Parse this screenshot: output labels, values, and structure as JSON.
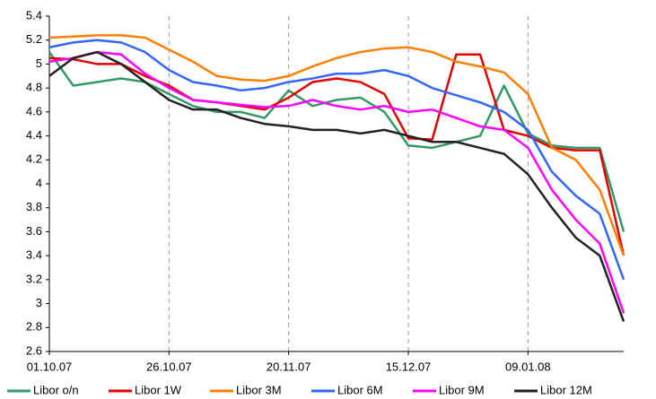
{
  "chart_data": {
    "type": "line",
    "categories": [
      "01.10.07",
      null,
      null,
      null,
      null,
      "26.10.07",
      null,
      null,
      null,
      null,
      "20.11.07",
      null,
      null,
      null,
      null,
      "15.12.07",
      null,
      null,
      null,
      null,
      "09.01.08",
      null,
      null,
      null,
      null
    ],
    "series": [
      {
        "name": "Libor o/n",
        "color": "#339966",
        "values": [
          5.1,
          4.82,
          4.85,
          4.88,
          4.85,
          4.75,
          4.65,
          4.6,
          4.6,
          4.55,
          4.78,
          4.65,
          4.7,
          4.72,
          4.6,
          4.32,
          4.3,
          4.35,
          4.4,
          4.82,
          4.42,
          4.32,
          4.3,
          4.3,
          3.6
        ]
      },
      {
        "name": "Libor 1W",
        "color": "#e00000",
        "values": [
          5.05,
          5.04,
          5.0,
          5.0,
          4.9,
          4.82,
          4.7,
          4.68,
          4.65,
          4.62,
          4.72,
          4.85,
          4.88,
          4.85,
          4.75,
          4.38,
          4.37,
          5.08,
          5.08,
          4.45,
          4.4,
          4.3,
          4.28,
          4.28,
          3.4
        ]
      },
      {
        "name": "Libor 3M",
        "color": "#ff7f00",
        "values": [
          5.22,
          5.23,
          5.24,
          5.24,
          5.22,
          5.12,
          5.02,
          4.9,
          4.87,
          4.86,
          4.9,
          4.98,
          5.05,
          5.1,
          5.13,
          5.14,
          5.1,
          5.02,
          4.98,
          4.93,
          4.75,
          4.3,
          4.2,
          3.95,
          3.4
        ]
      },
      {
        "name": "Libor 6M",
        "color": "#3366ff",
        "values": [
          5.14,
          5.18,
          5.2,
          5.18,
          5.1,
          4.95,
          4.85,
          4.82,
          4.78,
          4.8,
          4.85,
          4.88,
          4.92,
          4.92,
          4.95,
          4.9,
          4.8,
          4.74,
          4.68,
          4.6,
          4.45,
          4.1,
          3.9,
          3.75,
          3.2
        ]
      },
      {
        "name": "Libor 9M",
        "color": "#ff00ff",
        "values": [
          5.02,
          5.05,
          5.1,
          5.08,
          4.92,
          4.8,
          4.7,
          4.68,
          4.66,
          4.64,
          4.65,
          4.7,
          4.65,
          4.62,
          4.65,
          4.6,
          4.62,
          4.55,
          4.48,
          4.45,
          4.3,
          3.95,
          3.7,
          3.5,
          2.92
        ]
      },
      {
        "name": "Libor 12M",
        "color": "#222222",
        "values": [
          4.9,
          5.05,
          5.1,
          5.0,
          4.85,
          4.7,
          4.62,
          4.62,
          4.55,
          4.5,
          4.48,
          4.45,
          4.45,
          4.42,
          4.45,
          4.4,
          4.35,
          4.35,
          4.3,
          4.25,
          4.08,
          3.8,
          3.55,
          3.4,
          2.85
        ]
      }
    ],
    "ylim": [
      2.6,
      5.4
    ],
    "yticks": [
      2.6,
      2.8,
      3,
      3.2,
      3.4,
      3.6,
      3.8,
      4,
      4.2,
      4.4,
      4.6,
      4.8,
      5,
      5.2,
      5.4
    ],
    "grid": "x",
    "legend": "bottom"
  }
}
